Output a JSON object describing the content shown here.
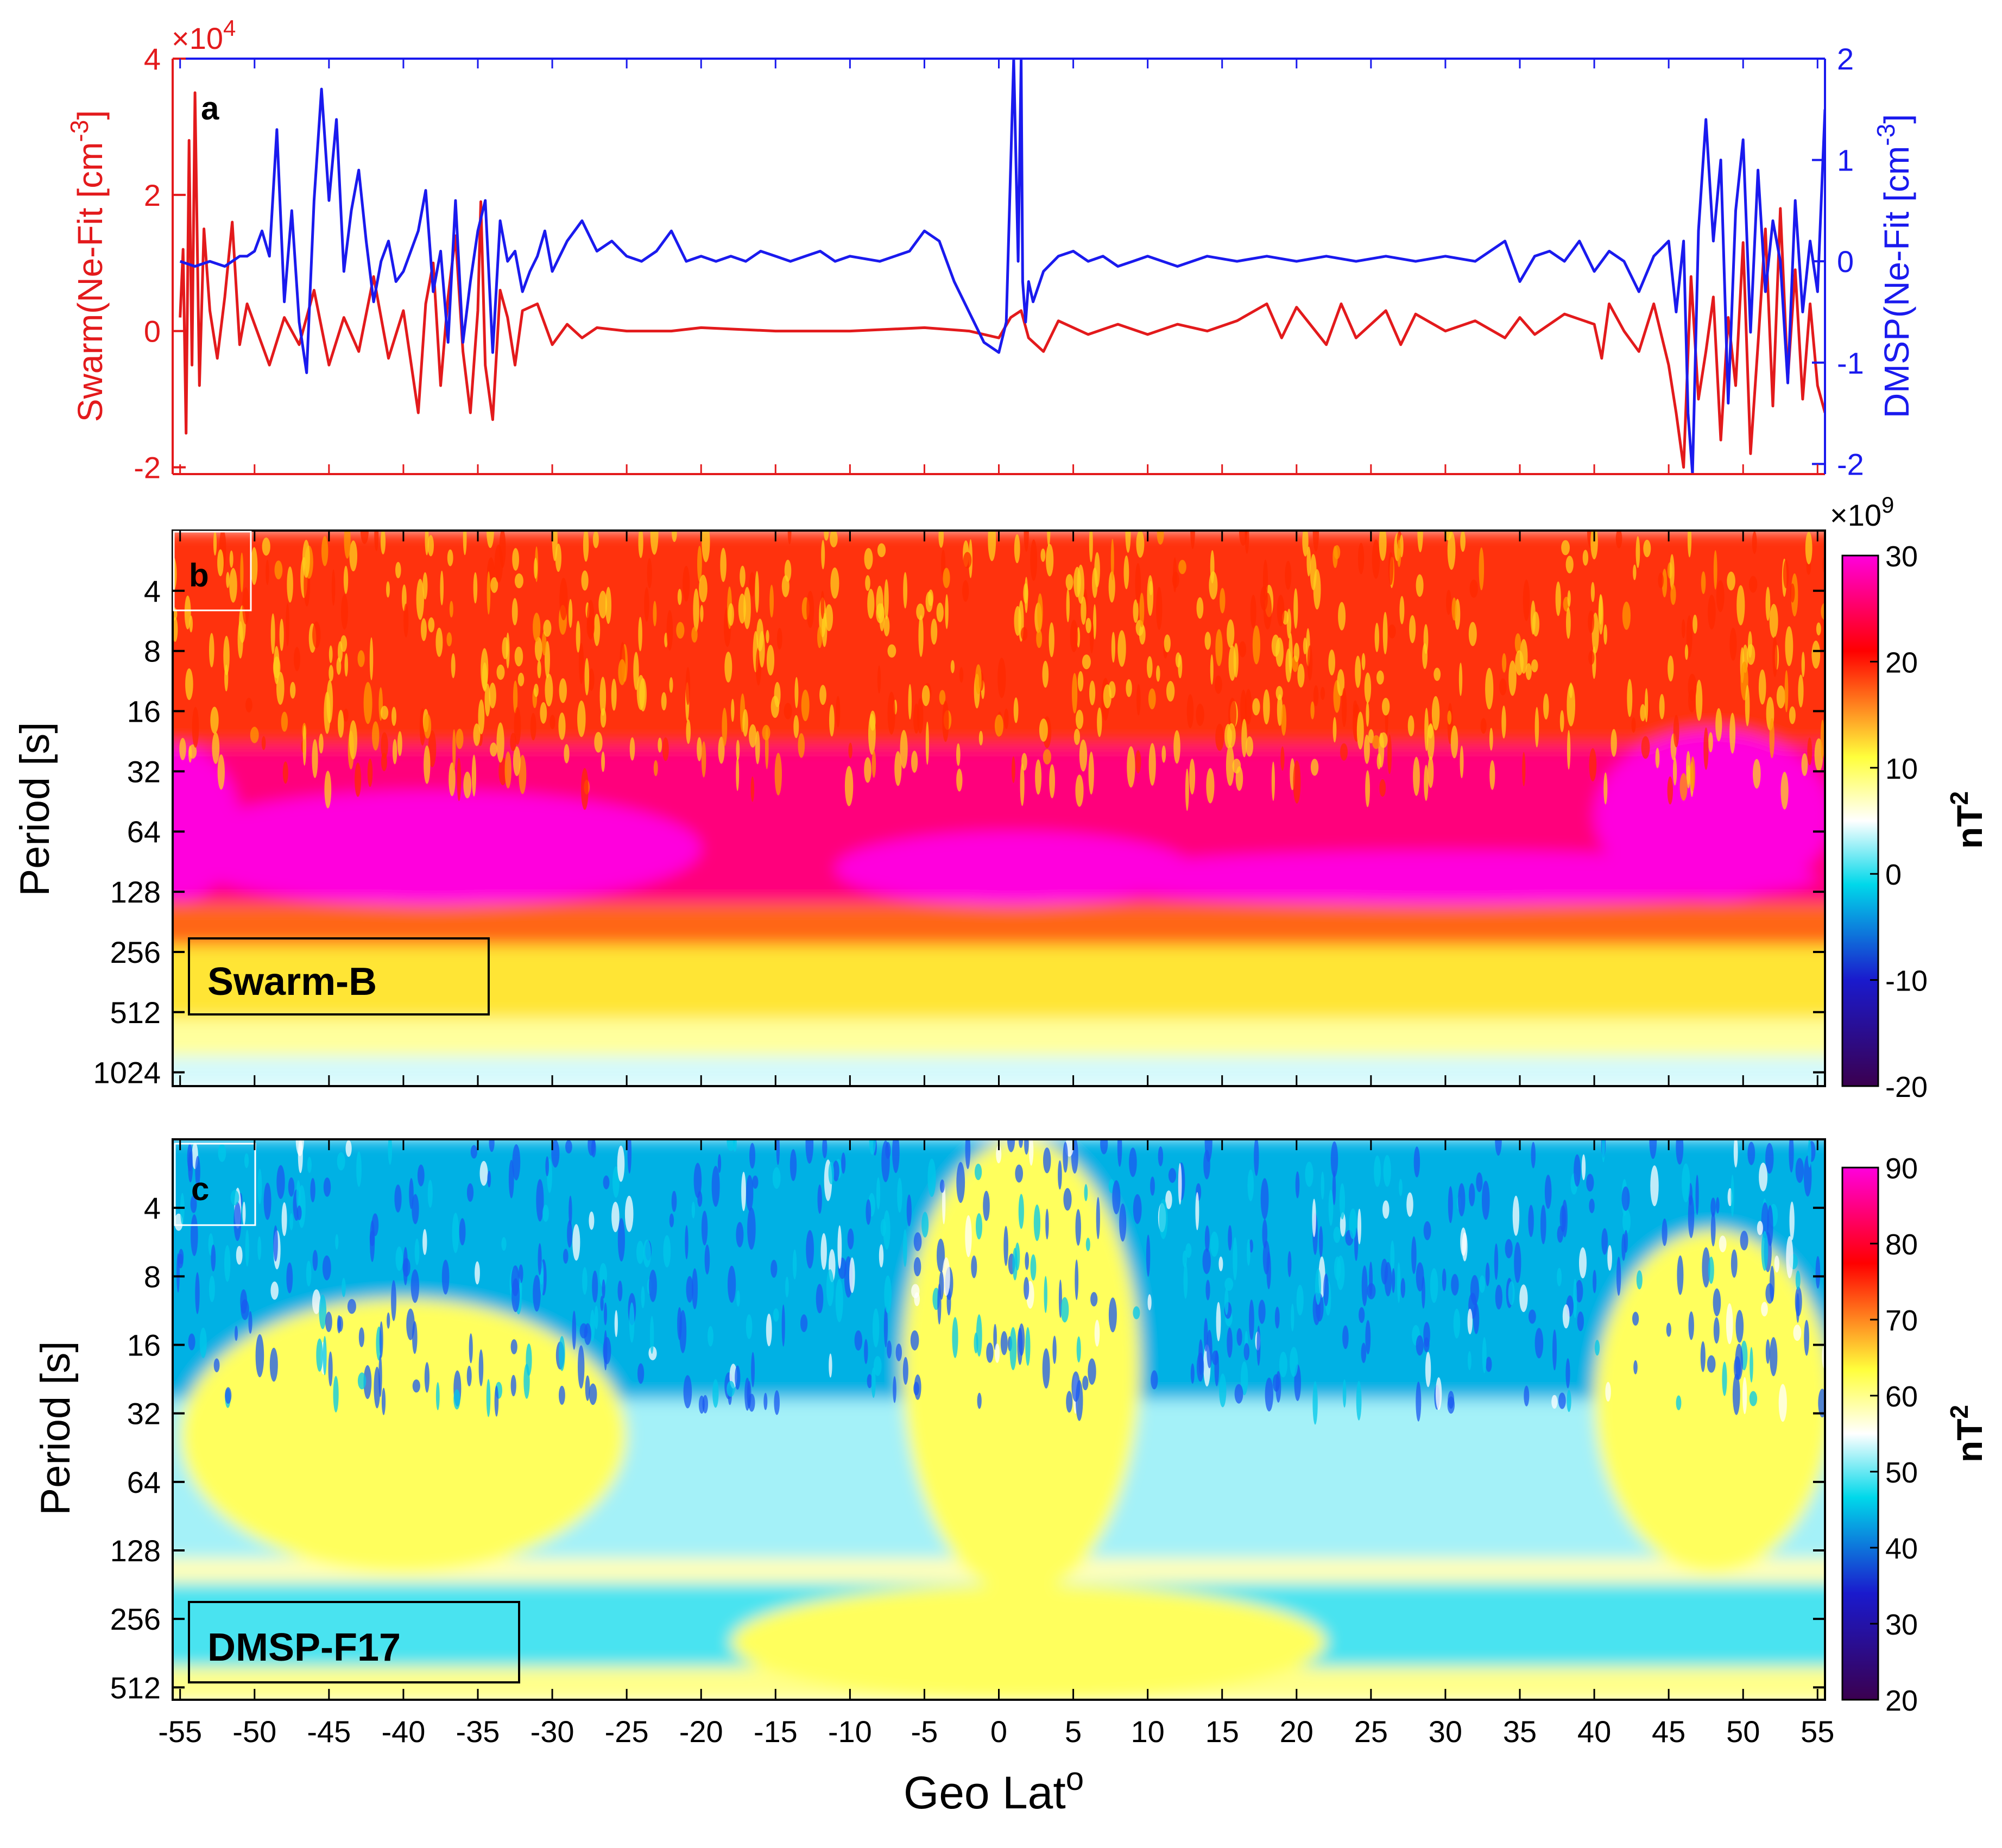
{
  "figure": {
    "xlabel": "Geo Lat",
    "xlabel_sup": "o",
    "x_ticks": [
      -55,
      -50,
      -45,
      -40,
      -35,
      -30,
      -25,
      -20,
      -15,
      -10,
      -5,
      0,
      5,
      10,
      15,
      20,
      25,
      30,
      35,
      40,
      45,
      50,
      55
    ],
    "xlim": [
      -55.5,
      55.5
    ]
  },
  "chart_data": [
    {
      "panel": "a",
      "type": "line",
      "left_axis": {
        "label": "Swarm(Ne-Fit [cm",
        "label_sup": "-3",
        "label_end": "]",
        "ticks": [
          -2,
          0,
          2,
          4
        ],
        "ylim": [
          -2.1,
          4
        ],
        "multiplier_base": "×10",
        "multiplier_exp": "4",
        "color": "#e31a1c"
      },
      "right_axis": {
        "label": "DMSP(Ne-Fit [cm",
        "label_sup": "-3",
        "label_end": "]",
        "ticks": [
          -2,
          -1,
          0,
          1,
          2
        ],
        "ylim": [
          -2.1,
          2
        ],
        "color": "#1a1aee"
      },
      "series": [
        {
          "name": "Swarm",
          "axis": "left",
          "color": "#e31a1c",
          "x": [
            -55,
            -54.8,
            -54.6,
            -54.4,
            -54.2,
            -54,
            -53.7,
            -53.4,
            -53,
            -52.5,
            -52,
            -51.5,
            -51,
            -50.5,
            -50,
            -49,
            -48,
            -47,
            -46,
            -45,
            -44,
            -43,
            -42,
            -41,
            -40,
            -39,
            -38.5,
            -38,
            -37.5,
            -37,
            -36.5,
            -36,
            -35.5,
            -35,
            -34.8,
            -34.5,
            -34,
            -33.5,
            -33,
            -32.5,
            -32,
            -31,
            -30,
            -29,
            -28,
            -27,
            -25,
            -22,
            -20,
            -15,
            -10,
            -5,
            -2,
            0,
            0.8,
            1.5,
            2,
            3,
            4,
            6,
            8,
            10,
            12,
            14,
            16,
            18,
            19,
            20,
            22,
            23,
            24,
            26,
            27,
            28,
            30,
            32,
            34,
            35,
            36,
            38,
            40,
            40.5,
            41,
            42,
            43,
            44,
            45,
            45.5,
            46,
            46.5,
            47,
            47.5,
            48,
            48.5,
            49,
            49.5,
            50,
            50.5,
            51,
            51.5,
            52,
            52.5,
            53,
            53.5,
            54,
            54.5,
            55,
            55.5
          ],
          "values": [
            0.2,
            1.2,
            -1.5,
            2.8,
            -0.5,
            3.5,
            -0.8,
            1.5,
            0.3,
            -0.4,
            0.5,
            1.6,
            -0.2,
            0.4,
            0.1,
            -0.5,
            0.2,
            -0.2,
            0.6,
            -0.5,
            0.2,
            -0.3,
            0.8,
            -0.4,
            0.3,
            -1.2,
            0.4,
            1.0,
            -0.8,
            0.5,
            1.4,
            -0.3,
            -1.2,
            0.3,
            1.9,
            -0.5,
            -1.3,
            0.6,
            0.2,
            -0.5,
            0.3,
            0.4,
            -0.2,
            0.1,
            -0.1,
            0.05,
            0.0,
            0.0,
            0.05,
            0.0,
            0.0,
            0.05,
            0.0,
            -0.1,
            0.2,
            0.3,
            -0.1,
            -0.3,
            0.15,
            -0.05,
            0.1,
            -0.05,
            0.1,
            0.0,
            0.15,
            0.4,
            -0.1,
            0.35,
            -0.2,
            0.4,
            -0.1,
            0.3,
            -0.2,
            0.25,
            0.0,
            0.15,
            -0.1,
            0.2,
            -0.05,
            0.25,
            0.1,
            -0.4,
            0.4,
            0.0,
            -0.3,
            0.4,
            -0.5,
            -1.2,
            -2.0,
            0.8,
            -1.0,
            -0.3,
            0.5,
            -1.6,
            0.2,
            -0.8,
            1.3,
            -1.8,
            -0.2,
            1.5,
            -1.1,
            1.8,
            -0.7,
            0.9,
            -1.0,
            0.4,
            -0.8,
            -1.2
          ],
          "note": "Values in units of 1e4 cm^-3"
        },
        {
          "name": "DMSP",
          "axis": "right",
          "color": "#1a1aee",
          "x": [
            -55,
            -54,
            -53,
            -52,
            -51,
            -50.5,
            -50,
            -49.5,
            -49,
            -48.5,
            -48,
            -47.5,
            -47,
            -46.5,
            -46,
            -45.5,
            -45,
            -44.5,
            -44,
            -43.5,
            -43,
            -42.5,
            -42,
            -41.5,
            -41,
            -40.5,
            -40,
            -39.5,
            -39,
            -38.5,
            -38,
            -37.5,
            -37,
            -36.5,
            -36,
            -35.5,
            -35,
            -34.5,
            -34,
            -33.5,
            -33,
            -32.5,
            -32,
            -31.5,
            -31,
            -30.5,
            -30,
            -29,
            -28,
            -27,
            -26,
            -25,
            -24,
            -23,
            -22,
            -21,
            -20,
            -19,
            -18,
            -17,
            -16,
            -15,
            -14,
            -13,
            -12,
            -11,
            -10,
            -8,
            -6,
            -5,
            -4,
            -3,
            -2,
            -1,
            0,
            0.5,
            1,
            1.3,
            1.5,
            1.6,
            1.8,
            2,
            2.3,
            3,
            4,
            5,
            6,
            7,
            8,
            9,
            10,
            12,
            14,
            16,
            18,
            20,
            22,
            24,
            26,
            28,
            30,
            32,
            34,
            35,
            36,
            37,
            38,
            39,
            40,
            41,
            42,
            43,
            44,
            45,
            45.5,
            46,
            46.3,
            46.6,
            47,
            47.5,
            48,
            48.5,
            49,
            49.5,
            50,
            50.5,
            51,
            51.5,
            52,
            52.5,
            53,
            53.5,
            54,
            54.5,
            55,
            55.5
          ],
          "values": [
            0.0,
            -0.05,
            0.0,
            -0.05,
            0.05,
            0.05,
            0.1,
            0.3,
            0.05,
            1.3,
            -0.4,
            0.5,
            -0.6,
            -1.1,
            0.6,
            1.7,
            0.6,
            1.4,
            -0.1,
            0.5,
            0.9,
            0.2,
            -0.4,
            0.0,
            0.2,
            -0.2,
            -0.1,
            0.1,
            0.3,
            0.7,
            -0.3,
            0.1,
            -0.8,
            0.6,
            -0.8,
            -0.2,
            0.3,
            0.6,
            -0.9,
            0.4,
            0.0,
            0.1,
            -0.3,
            -0.1,
            0.05,
            0.3,
            -0.1,
            0.2,
            0.4,
            0.1,
            0.2,
            0.05,
            0.0,
            0.1,
            0.3,
            0.0,
            0.05,
            0.0,
            0.05,
            0.0,
            0.1,
            0.05,
            0.0,
            0.05,
            0.1,
            0.0,
            0.05,
            0.0,
            0.1,
            0.3,
            0.2,
            -0.2,
            -0.5,
            -0.8,
            -0.9,
            -0.6,
            2.0,
            0.0,
            2.0,
            -0.2,
            -0.6,
            -0.2,
            -0.4,
            -0.1,
            0.05,
            0.1,
            0.0,
            0.05,
            -0.05,
            0.0,
            0.05,
            -0.05,
            0.05,
            0.0,
            0.05,
            0.0,
            0.05,
            0.0,
            0.05,
            0.0,
            0.05,
            0.0,
            0.2,
            -0.2,
            0.05,
            0.1,
            0.0,
            0.2,
            -0.1,
            0.1,
            0.0,
            -0.3,
            0.05,
            0.2,
            -0.5,
            0.2,
            -1.5,
            -2.1,
            0.3,
            1.4,
            0.2,
            1.0,
            -1.4,
            0.5,
            1.2,
            -0.7,
            0.9,
            -0.3,
            0.4,
            0.0,
            -1.2,
            0.6,
            -0.5,
            0.2,
            -0.3,
            1.5
          ]
        }
      ]
    },
    {
      "panel": "b",
      "type": "heatmap",
      "name": "Swarm-B",
      "ylabel": "Period [s]",
      "y_ticks": [
        4,
        8,
        16,
        32,
        64,
        128,
        256,
        512,
        1024
      ],
      "ylim": [
        2,
        1200
      ],
      "colorbar": {
        "label": "nT",
        "label_sup": "2",
        "multiplier_base": "×10",
        "multiplier_exp": "9",
        "ticks": [
          -20,
          -10,
          0,
          10,
          20,
          30
        ],
        "range": [
          -20,
          30
        ],
        "colors": [
          "#3b004f",
          "#1a1acd",
          "#00d8ea",
          "#ffffff",
          "#ffff3c",
          "#ff0000",
          "#ff00dd"
        ]
      },
      "bands": [
        {
          "p_from": 2,
          "p_to": 24,
          "value": 19,
          "note": "orange-red fine speckle"
        },
        {
          "p_from": 24,
          "p_to": 150,
          "value": 26,
          "note": "magenta lobes with red background"
        },
        {
          "p_from": 150,
          "p_to": 240,
          "value": 17
        },
        {
          "p_from": 240,
          "p_to": 560,
          "value": 12
        },
        {
          "p_from": 560,
          "p_to": 860,
          "value": 8
        },
        {
          "p_from": 860,
          "p_to": 1200,
          "value": 4
        }
      ],
      "lobes": [
        {
          "lat": -55,
          "lat_half_width": 4,
          "p_top": 24,
          "p_bottom": 140
        },
        {
          "lat": -38,
          "lat_half_width": 18,
          "p_top": 40,
          "p_bottom": 150
        },
        {
          "lat": 1,
          "lat_half_width": 12,
          "p_top": 64,
          "p_bottom": 150
        },
        {
          "lat": 30,
          "lat_half_width": 25,
          "p_top": 80,
          "p_bottom": 150
        },
        {
          "lat": 48,
          "lat_half_width": 8,
          "p_top": 20,
          "p_bottom": 140
        }
      ]
    },
    {
      "panel": "c",
      "type": "heatmap",
      "name": "DMSP-F17",
      "ylabel": "Period [s]",
      "y_ticks": [
        4,
        8,
        16,
        32,
        64,
        128,
        256,
        512
      ],
      "ylim": [
        2,
        580
      ],
      "colorbar": {
        "label": "nT",
        "label_sup": "2",
        "ticks": [
          20,
          30,
          40,
          50,
          60,
          70,
          80,
          90
        ],
        "range": [
          20,
          90
        ],
        "colors": [
          "#3b004f",
          "#1a1acd",
          "#00d8ea",
          "#ffffff",
          "#ffff3c",
          "#ff0000",
          "#ff00dd"
        ]
      },
      "bands": [
        {
          "p_from": 2,
          "p_to": 28,
          "value": 44,
          "note": "blue/cyan speckle"
        },
        {
          "p_from": 28,
          "p_to": 140,
          "value": 52
        },
        {
          "p_from": 140,
          "p_to": 180,
          "value": 58
        },
        {
          "p_from": 180,
          "p_to": 420,
          "value": 49
        },
        {
          "p_from": 420,
          "p_to": 580,
          "value": 60
        }
      ],
      "lobes": [
        {
          "lat": -40,
          "lat_half_width": 15,
          "p_top": 10,
          "p_bottom": 160
        },
        {
          "lat": 1.5,
          "lat_half_width": 8,
          "p_top": 2,
          "p_bottom": 200
        },
        {
          "lat": 48,
          "lat_half_width": 8,
          "p_top": 5,
          "p_bottom": 160
        },
        {
          "lat": 2,
          "lat_half_width": 20,
          "p_top": 180,
          "p_bottom": 580
        }
      ]
    }
  ]
}
